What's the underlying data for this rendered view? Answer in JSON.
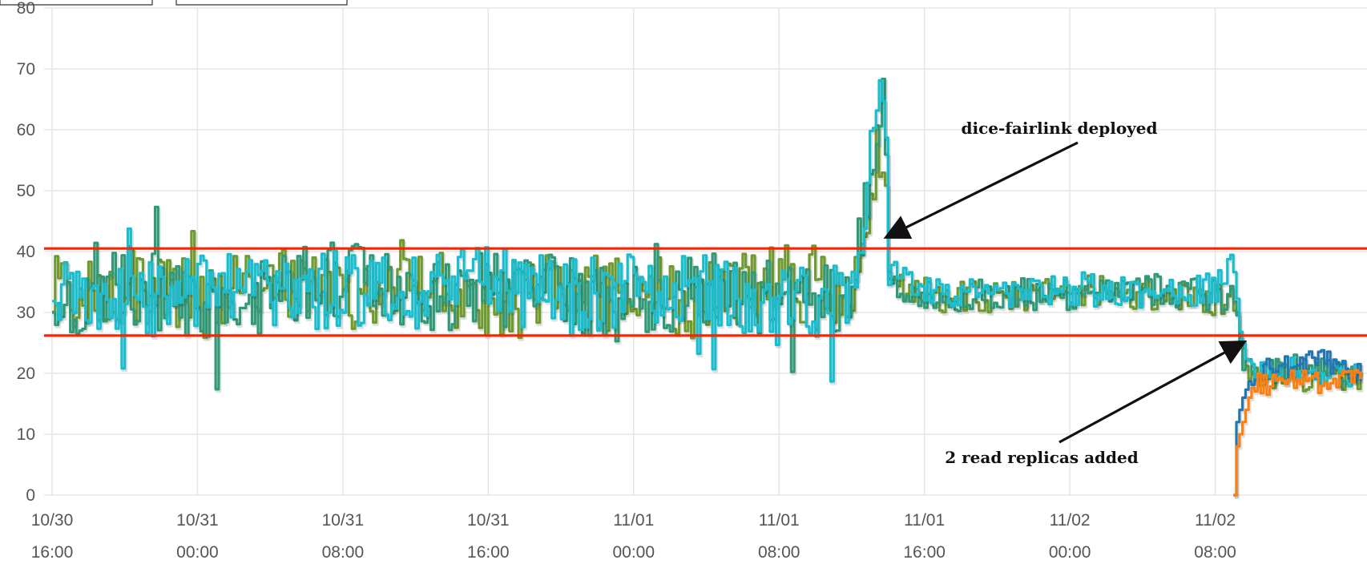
{
  "chart_data": {
    "type": "line",
    "title": "",
    "xlabel": "",
    "ylabel": "",
    "ylim": [
      0,
      80
    ],
    "xlim": [
      "2023-10-30T16:00",
      "2023-11-02T16:00"
    ],
    "grid": true,
    "legend": "none",
    "y_ticks": [
      "0",
      "10",
      "20",
      "30",
      "40",
      "50",
      "60",
      "70",
      "80"
    ],
    "x_ticks": [
      {
        "date": "10/30",
        "time": "16:00"
      },
      {
        "date": "10/31",
        "time": "00:00"
      },
      {
        "date": "10/31",
        "time": "08:00"
      },
      {
        "date": "10/31",
        "time": "16:00"
      },
      {
        "date": "11/01",
        "time": "00:00"
      },
      {
        "date": "11/01",
        "time": "08:00"
      },
      {
        "date": "11/01",
        "time": "16:00"
      },
      {
        "date": "11/02",
        "time": "00:00"
      },
      {
        "date": "11/02",
        "time": "08:00"
      }
    ],
    "reference_lines": [
      {
        "y": 40.5,
        "color": "#ff2200"
      },
      {
        "y": 26.2,
        "color": "#ff2200"
      }
    ],
    "series": [
      {
        "color": "#6e9a2e",
        "x": [
          "2023-10-30T16:00",
          "2023-10-30T20:00",
          "2023-10-31T00:00",
          "2023-10-31T04:00",
          "2023-10-31T08:00",
          "2023-10-31T12:00",
          "2023-10-31T16:00",
          "2023-10-31T20:00",
          "2023-11-01T00:00",
          "2023-11-01T04:00",
          "2023-11-01T08:00",
          "2023-11-01T12:00",
          "2023-11-01T13:45",
          "2023-11-01T14:00",
          "2023-11-01T16:00",
          "2023-11-01T20:00",
          "2023-11-02T00:00",
          "2023-11-02T04:00",
          "2023-11-02T08:00",
          "2023-11-02T09:00",
          "2023-11-02T09:30",
          "2023-11-02T10:00",
          "2023-11-02T12:00",
          "2023-11-02T14:00",
          "2023-11-02T16:00"
        ],
        "y": [
          33,
          34,
          32,
          35,
          33,
          36,
          31,
          34,
          33,
          32,
          35,
          34,
          60,
          35,
          33,
          32,
          34,
          33,
          32,
          31,
          22,
          19,
          20,
          19,
          19
        ]
      },
      {
        "color": "#2e9a78",
        "x": [
          "2023-10-30T16:00",
          "2023-10-30T20:00",
          "2023-10-31T00:00",
          "2023-10-31T04:00",
          "2023-10-31T08:00",
          "2023-10-31T12:00",
          "2023-10-31T16:00",
          "2023-10-31T20:00",
          "2023-11-01T00:00",
          "2023-11-01T04:00",
          "2023-11-01T08:00",
          "2023-11-01T12:00",
          "2023-11-01T13:45",
          "2023-11-01T14:00",
          "2023-11-01T16:00",
          "2023-11-01T20:00",
          "2023-11-02T00:00",
          "2023-11-02T04:00",
          "2023-11-02T08:00",
          "2023-11-02T09:00",
          "2023-11-02T09:30",
          "2023-11-02T10:00",
          "2023-11-02T12:00",
          "2023-11-02T14:00",
          "2023-11-02T16:00"
        ],
        "y": [
          32,
          35,
          31,
          33,
          36,
          32,
          34,
          33,
          31,
          35,
          32,
          33,
          68,
          34,
          32,
          33,
          33,
          34,
          33,
          32,
          23,
          20,
          21,
          20,
          20
        ]
      },
      {
        "color": "#17becf",
        "x": [
          "2023-10-30T16:00",
          "2023-10-30T20:00",
          "2023-10-31T00:00",
          "2023-10-31T04:00",
          "2023-10-31T08:00",
          "2023-10-31T12:00",
          "2023-10-31T16:00",
          "2023-10-31T20:00",
          "2023-11-01T00:00",
          "2023-11-01T04:00",
          "2023-11-01T08:00",
          "2023-11-01T12:00",
          "2023-11-01T13:45",
          "2023-11-01T14:00",
          "2023-11-01T16:00",
          "2023-11-01T20:00",
          "2023-11-02T00:00",
          "2023-11-02T04:00",
          "2023-11-02T08:00",
          "2023-11-02T09:00",
          "2023-11-02T09:30",
          "2023-11-02T10:00",
          "2023-11-02T12:00",
          "2023-11-02T14:00",
          "2023-11-02T16:00"
        ],
        "y": [
          33,
          31,
          34,
          32,
          34,
          33,
          35,
          32,
          34,
          33,
          31,
          32,
          73,
          36,
          34,
          33,
          34,
          33,
          34,
          38,
          24,
          20,
          20,
          21,
          20
        ]
      },
      {
        "color": "#1f77b4",
        "x": [
          "2023-11-02T09:00",
          "2023-11-02T09:10",
          "2023-11-02T09:30",
          "2023-11-02T10:00",
          "2023-11-02T12:00",
          "2023-11-02T14:00",
          "2023-11-02T16:00"
        ],
        "y": [
          0,
          12,
          16,
          20,
          21,
          22,
          20
        ]
      },
      {
        "color": "#ff7f0e",
        "x": [
          "2023-11-02T09:00",
          "2023-11-02T09:10",
          "2023-11-02T09:30",
          "2023-11-02T10:00",
          "2023-11-02T12:00",
          "2023-11-02T14:00",
          "2023-11-02T16:00"
        ],
        "y": [
          0,
          8,
          12,
          18,
          19,
          18,
          19
        ]
      }
    ],
    "annotations": [
      {
        "text": "dice-fairlink deployed",
        "target_x": "2023-11-01T14:00",
        "target_y": 42.5
      },
      {
        "text": "2 read replicas added",
        "target_x": "2023-11-02T09:30",
        "target_y": 25
      }
    ]
  }
}
